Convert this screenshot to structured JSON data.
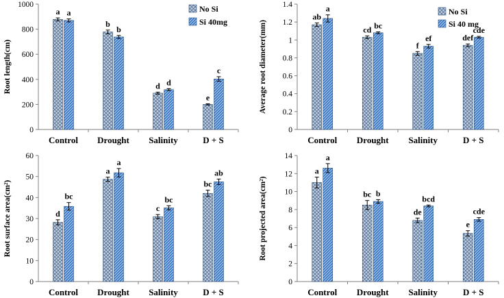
{
  "chart_data": [
    {
      "type": "bar",
      "categories": [
        "Control",
        "Drought",
        "Salinity",
        "D + S"
      ],
      "ylabel": "Root length(cm)",
      "ylim": [
        0,
        1000
      ],
      "yticks": [
        "0",
        "200",
        "400",
        "600",
        "800",
        "1000"
      ],
      "legend_position": "top-right",
      "series": [
        {
          "name": "No Si",
          "values": [
            878,
            778,
            290,
            200
          ],
          "errors": [
            12,
            15,
            8,
            5
          ],
          "letters": [
            "a",
            "b",
            "d",
            "e"
          ]
        },
        {
          "name": "Si 40mg",
          "values": [
            870,
            738,
            318,
            403
          ],
          "errors": [
            12,
            12,
            8,
            18
          ],
          "letters": [
            "a",
            "b",
            "d",
            "c"
          ]
        }
      ]
    },
    {
      "type": "bar",
      "categories": [
        "Control",
        "Drought",
        "Salinity",
        "D + S"
      ],
      "ylabel": "Average root diameter(mm)",
      "ylim": [
        0,
        1.4
      ],
      "yticks": [
        "0",
        "0.2",
        "0.4",
        "0.6",
        "0.8",
        "1",
        "1.2",
        "1.4"
      ],
      "legend_position": "top-right",
      "series": [
        {
          "name": "No Si",
          "values": [
            1.17,
            1.03,
            0.85,
            0.94
          ],
          "errors": [
            0.02,
            0.015,
            0.02,
            0.015
          ],
          "letters": [
            "ab",
            "cd",
            "f",
            "def"
          ]
        },
        {
          "name": "Si 40 mg",
          "values": [
            1.24,
            1.08,
            0.93,
            1.03
          ],
          "errors": [
            0.04,
            0.01,
            0.02,
            0.01
          ],
          "letters": [
            "a",
            "bc",
            "ef",
            "cde"
          ]
        }
      ]
    },
    {
      "type": "bar",
      "categories": [
        "Control",
        "Drought",
        "Salinity",
        "D + S"
      ],
      "ylabel": "Root surface area(cm²)",
      "ylim": [
        0,
        60
      ],
      "yticks": [
        "0",
        "10",
        "20",
        "30",
        "40",
        "50",
        "60"
      ],
      "series": [
        {
          "name": "No Si",
          "values": [
            28.2,
            48.7,
            30.9,
            42.0
          ],
          "errors": [
            1.2,
            1.0,
            1.0,
            1.5
          ],
          "letters": [
            "d",
            "a",
            "c",
            "bc"
          ]
        },
        {
          "name": "Si 40 mg",
          "values": [
            35.8,
            51.8,
            35.1,
            47.5
          ],
          "errors": [
            1.8,
            2.0,
            1.0,
            1.3
          ],
          "letters": [
            "bc",
            "a",
            "bc",
            "ab"
          ]
        }
      ]
    },
    {
      "type": "bar",
      "categories": [
        "Control",
        "Drought",
        "Salinity",
        "D + S"
      ],
      "ylabel": "Root projected area(cm²)",
      "ylim": [
        0,
        14
      ],
      "yticks": [
        "0",
        "2",
        "4",
        "6",
        "8",
        "10",
        "12",
        "14"
      ],
      "series": [
        {
          "name": "No Si",
          "values": [
            11.0,
            8.5,
            6.8,
            5.35
          ],
          "errors": [
            0.6,
            0.5,
            0.25,
            0.3
          ],
          "letters": [
            "a",
            "bc",
            "de",
            "e"
          ]
        },
        {
          "name": "Si 40 mg",
          "values": [
            12.6,
            8.9,
            8.4,
            6.9
          ],
          "errors": [
            0.5,
            0.2,
            0.1,
            0.2
          ],
          "letters": [
            "a",
            "b",
            "bcd",
            "cde"
          ]
        }
      ]
    }
  ]
}
